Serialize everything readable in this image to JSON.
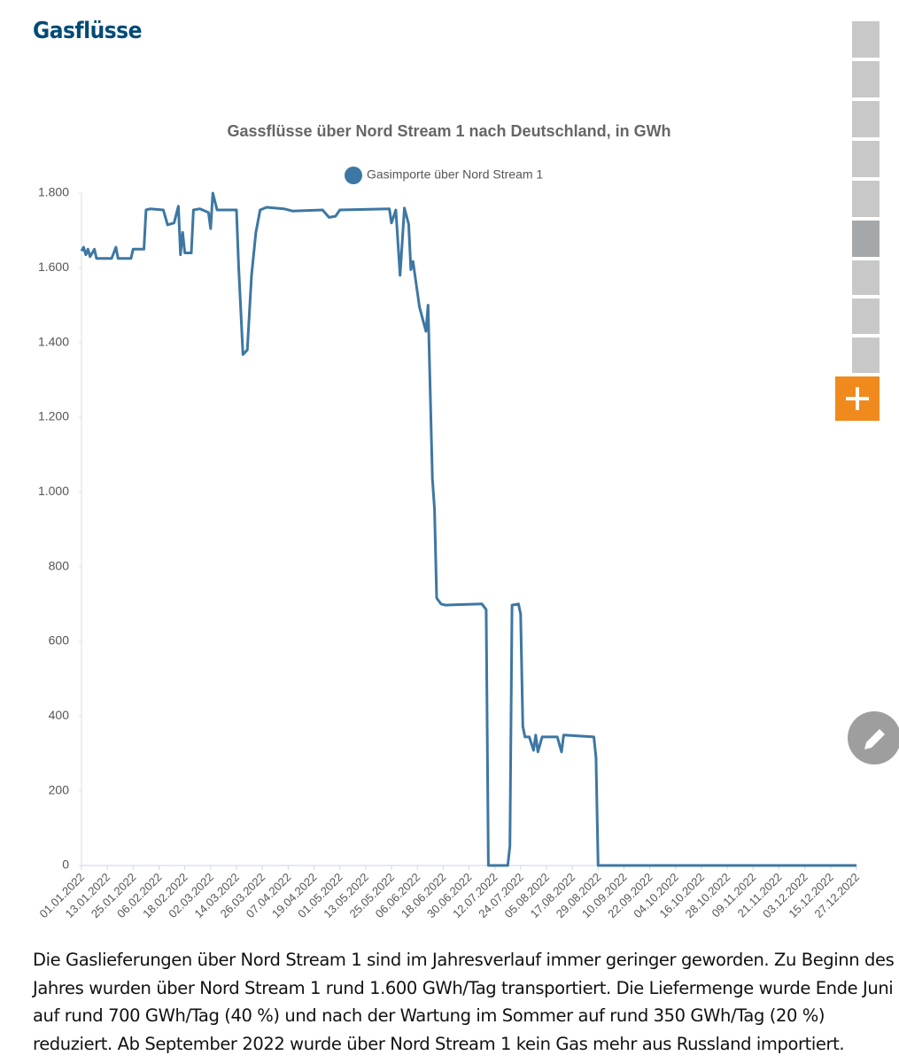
{
  "header": {
    "title": "Gasflüsse"
  },
  "chart_data": {
    "type": "line",
    "title": "Gassflüsse über Nord Stream 1 nach Deutschland, in GWh",
    "x": [
      "01.01.2022",
      "02.01.2022",
      "03.01.2022",
      "04.01.2022",
      "05.01.2022",
      "07.01.2022",
      "08.01.2022",
      "15.01.2022",
      "17.01.2022",
      "18.01.2022",
      "24.01.2022",
      "25.01.2022",
      "30.01.2022",
      "31.01.2022",
      "02.02.2022",
      "08.02.2022",
      "10.02.2022",
      "13.02.2022",
      "15.02.2022",
      "16.02.2022",
      "17.02.2022",
      "18.02.2022",
      "21.02.2022",
      "22.02.2022",
      "25.02.2022",
      "01.03.2022",
      "02.03.2022",
      "03.03.2022",
      "05.03.2022",
      "14.03.2022",
      "15.03.2022",
      "17.03.2022",
      "19.03.2022",
      "21.03.2022",
      "23.03.2022",
      "25.03.2022",
      "28.03.2022",
      "05.04.2022",
      "09.04.2022",
      "23.04.2022",
      "26.04.2022",
      "29.04.2022",
      "01.05.2022",
      "24.05.2022",
      "25.05.2022",
      "27.05.2022",
      "29.05.2022",
      "31.05.2022",
      "02.06.2022",
      "03.06.2022",
      "04.06.2022",
      "07.06.2022",
      "10.06.2022",
      "11.06.2022",
      "13.06.2022",
      "14.06.2022",
      "15.06.2022",
      "17.06.2022",
      "19.06.2022",
      "06.07.2022",
      "08.07.2022",
      "09.07.2022",
      "18.07.2022",
      "19.07.2022",
      "20.07.2022",
      "23.07.2022",
      "24.07.2022",
      "25.07.2022",
      "26.07.2022",
      "28.07.2022",
      "30.07.2022",
      "31.07.2022",
      "01.08.2022",
      "03.08.2022",
      "10.08.2022",
      "12.08.2022",
      "13.08.2022",
      "27.08.2022",
      "28.08.2022",
      "29.08.2022",
      "27.12.2022"
    ],
    "series": [
      {
        "name": "Gasimporte über Nord Stream 1",
        "color": "#3d77a3",
        "values": [
          1645,
          1655,
          1635,
          1650,
          1630,
          1650,
          1625,
          1625,
          1655,
          1625,
          1625,
          1650,
          1650,
          1755,
          1758,
          1755,
          1715,
          1720,
          1765,
          1635,
          1695,
          1640,
          1640,
          1755,
          1758,
          1748,
          1705,
          1800,
          1755,
          1755,
          1605,
          1368,
          1380,
          1580,
          1695,
          1755,
          1762,
          1758,
          1752,
          1755,
          1735,
          1738,
          1755,
          1758,
          1720,
          1755,
          1580,
          1760,
          1717,
          1595,
          1617,
          1495,
          1430,
          1500,
          1036,
          953,
          716,
          700,
          697,
          700,
          685,
          0,
          0,
          52,
          697,
          700,
          673,
          372,
          344,
          344,
          308,
          349,
          304,
          344,
          344,
          304,
          349,
          344,
          289,
          0,
          0
        ]
      }
    ],
    "xlim": [
      "01.01.2022",
      "27.12.2022"
    ],
    "xticks": [
      "01.01.2022",
      "13.01.2022",
      "25.01.2022",
      "06.02.2022",
      "18.02.2022",
      "02.03.2022",
      "14.03.2022",
      "26.03.2022",
      "07.04.2022",
      "19.04.2022",
      "01.05.2022",
      "13.05.2022",
      "25.05.2022",
      "06.06.2022",
      "18.06.2022",
      "30.06.2022",
      "12.07.2022",
      "24.07.2022",
      "05.08.2022",
      "17.08.2022",
      "29.08.2022",
      "10.09.2022",
      "22.09.2022",
      "04.10.2022",
      "16.10.2022",
      "28.10.2022",
      "09.11.2022",
      "21.11.2022",
      "03.12.2022",
      "15.12.2022",
      "27.12.2022"
    ],
    "ylim": [
      0,
      1800
    ],
    "yticks": [
      0,
      200,
      400,
      600,
      800,
      {
        "value": 1000,
        "label": "1.000"
      },
      {
        "value": 1200,
        "label": "1.200"
      },
      {
        "value": 1400,
        "label": "1.400"
      },
      {
        "value": 1600,
        "label": "1.600"
      },
      {
        "value": 1800,
        "label": "1.800"
      }
    ],
    "grid": false,
    "legend": "top"
  },
  "text": {
    "lines": [
      "Die Gaslieferungen über Nord Stream 1 sind im Jahresverlauf immer geringer geworden. Zu Beginn des",
      "Jahres wurden über Nord Stream 1 rund 1.600 GWh/Tag transportiert. Die Liefermenge wurde Ende Juni",
      "auf rund 700 GWh/Tag (40 %) und nach der Wartung im Sommer auf rund 350 GWh/Tag (20 %)",
      "reduziert. Ab September 2022 wurde über Nord Stream 1 kein Gas mehr aus Russland importiert."
    ]
  }
}
